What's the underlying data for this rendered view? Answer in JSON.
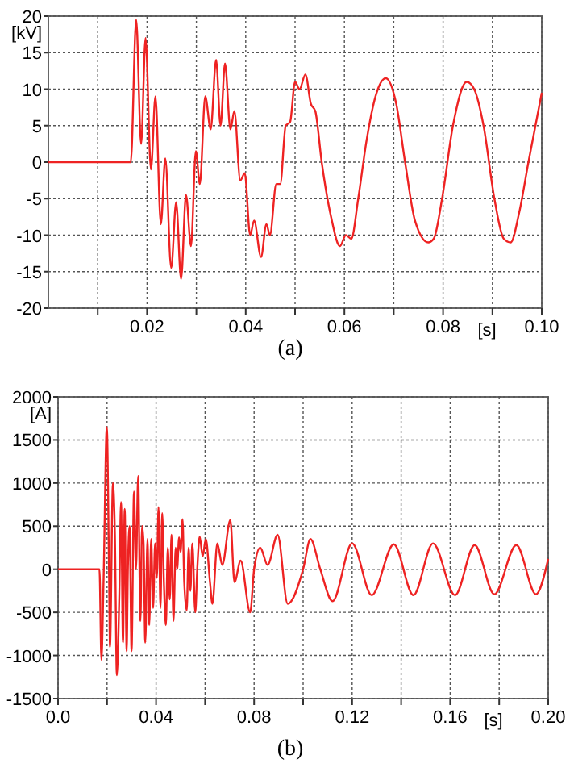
{
  "chart_data": [
    {
      "type": "line",
      "xlabel": "[s]",
      "ylabel": "[kV]",
      "annotations": [
        "(a)"
      ],
      "xlim": [
        0,
        0.1
      ],
      "ylim": [
        -20,
        20
      ],
      "xticks": [
        {
          "value": 0.01,
          "label": null
        },
        0.02,
        {
          "value": 0.03,
          "label": null
        },
        0.04,
        {
          "value": 0.05,
          "label": null
        },
        0.06,
        {
          "value": 0.07,
          "label": null
        },
        0.08,
        {
          "value": 0.09,
          "label": null
        },
        {
          "value": 0.1,
          "label": "0.10"
        }
      ],
      "yticks": [
        -20,
        -15,
        -10,
        -5,
        0,
        5,
        10,
        15,
        20
      ],
      "grid": true,
      "series": [
        {
          "color": "#ee2222",
          "x": [
            0,
            0.0167,
            0.0178,
            0.0188,
            0.0197,
            0.0208,
            0.0217,
            0.0228,
            0.0237,
            0.0249,
            0.0259,
            0.0269,
            0.0279,
            0.0289,
            0.0299,
            0.0307,
            0.0318,
            0.0329,
            0.034,
            0.0349,
            0.0358,
            0.0369,
            0.0377,
            0.0389,
            0.0398,
            0.0409,
            0.0417,
            0.0431,
            0.0442,
            0.0449,
            0.0462,
            0.047,
            0.0481,
            0.049,
            0.05,
            0.0509,
            0.0521,
            0.0532,
            0.0541,
            0.0554,
            0.0573,
            0.0591,
            0.0603,
            0.0614,
            0.0628,
            0.0645,
            0.0663,
            0.0684,
            0.0705,
            0.0723,
            0.0743,
            0.077,
            0.0781,
            0.0798,
            0.082,
            0.0848,
            0.0863,
            0.0882,
            0.0904,
            0.0923,
            0.0937,
            0.0954,
            0.0973,
            0.1
          ],
          "values": [
            0,
            0,
            19.5,
            2.5,
            17,
            -1,
            9,
            -8.5,
            0.5,
            -14.5,
            -5.5,
            -16,
            -4.5,
            -11.5,
            1.5,
            -3,
            9,
            4.5,
            14,
            5,
            13.5,
            4.5,
            7,
            -2.5,
            -1.5,
            -10,
            -8,
            -13,
            -8.5,
            -10,
            -3,
            -3,
            5,
            5.5,
            11,
            10,
            12,
            8,
            7,
            0,
            -7.5,
            -11.5,
            -10,
            -10.5,
            -5,
            3,
            9,
            11.5,
            8,
            0,
            -8,
            -11,
            -10.5,
            -5,
            5,
            11,
            10,
            5,
            -5,
            -10.5,
            -11,
            -7,
            0,
            9.5
          ]
        }
      ]
    },
    {
      "type": "line",
      "xlabel": "[s]",
      "ylabel": "[A]",
      "annotations": [
        "(b)"
      ],
      "xlim": [
        0,
        0.2
      ],
      "ylim": [
        -1500,
        2000
      ],
      "xticks": [
        {
          "value": 0,
          "label": "0.0"
        },
        {
          "value": 0.02,
          "label": null
        },
        0.04,
        {
          "value": 0.06,
          "label": null
        },
        0.08,
        {
          "value": 0.1,
          "label": null
        },
        0.12,
        {
          "value": 0.14,
          "label": null
        },
        0.16,
        {
          "value": 0.18,
          "label": null
        },
        {
          "value": 0.2,
          "label": "0.20"
        }
      ],
      "yticks": [
        -1500,
        -1000,
        -500,
        0,
        500,
        1000,
        1500,
        2000
      ],
      "grid": true,
      "series": [
        {
          "color": "#ee2222",
          "x": [
            0,
            0.0169,
            0.0177,
            0.0186,
            0.0199,
            0.0208,
            0.0212,
            0.0224,
            0.0232,
            0.024,
            0.025,
            0.0257,
            0.0265,
            0.0272,
            0.028,
            0.0285,
            0.0292,
            0.03,
            0.031,
            0.0318,
            0.0327,
            0.0336,
            0.0343,
            0.0349,
            0.0356,
            0.0365,
            0.0372,
            0.038,
            0.0388,
            0.0396,
            0.0403,
            0.041,
            0.0418,
            0.0425,
            0.0432,
            0.044,
            0.0448,
            0.0456,
            0.0463,
            0.0471,
            0.048,
            0.0486,
            0.0494,
            0.05,
            0.0508,
            0.0515,
            0.0525,
            0.0533,
            0.054,
            0.0548,
            0.056,
            0.0568,
            0.0578,
            0.059,
            0.0603,
            0.062,
            0.063,
            0.065,
            0.067,
            0.0703,
            0.072,
            0.0745,
            0.0784,
            0.08,
            0.0825,
            0.0855,
            0.0896,
            0.0937,
            0.1,
            0.103,
            0.107,
            0.112,
            0.12,
            0.128,
            0.137,
            0.145,
            0.153,
            0.162,
            0.17,
            0.178,
            0.187,
            0.195,
            0.2
          ],
          "values": [
            0,
            0,
            -1050,
            -100,
            1650,
            0,
            -900,
            1000,
            400,
            -1230,
            -300,
            780,
            -850,
            700,
            -950,
            0,
            500,
            -950,
            900,
            0,
            1080,
            -600,
            500,
            300,
            -850,
            350,
            -650,
            350,
            -450,
            300,
            -100,
            720,
            -450,
            650,
            -150,
            -650,
            250,
            -350,
            400,
            -600,
            250,
            0,
            370,
            200,
            580,
            -150,
            -480,
            250,
            -250,
            300,
            -500,
            0,
            380,
            150,
            350,
            -150,
            -400,
            300,
            50,
            570,
            -150,
            100,
            -500,
            0,
            250,
            50,
            400,
            -400,
            0,
            350,
            0,
            -370,
            300,
            -300,
            290,
            -300,
            300,
            -300,
            280,
            -290,
            280,
            -290,
            120
          ]
        }
      ]
    }
  ]
}
